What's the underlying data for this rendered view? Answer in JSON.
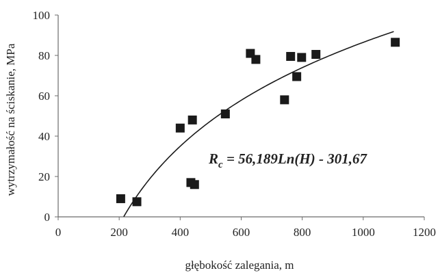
{
  "colors": {
    "background": "#ffffff",
    "axis": "#6b6b6b",
    "marker": "#1a1a1a",
    "curve": "#1a1a1a",
    "text": "#222222"
  },
  "chart_data": {
    "type": "scatter",
    "title": "",
    "xlabel": "głębokość zalegania, m",
    "ylabel": "wytrzymałość na ściskanie, MPa",
    "xlim": [
      0,
      1200
    ],
    "ylim": [
      0,
      100
    ],
    "x_ticks": [
      0,
      200,
      400,
      600,
      800,
      1000,
      1200
    ],
    "y_ticks": [
      0,
      20,
      40,
      60,
      80,
      100
    ],
    "x_tick_labels": [
      "0",
      "200",
      "400",
      "600",
      "800",
      "1000",
      "1200"
    ],
    "y_tick_labels": [
      "0",
      "20",
      "40",
      "60",
      "80",
      "100"
    ],
    "grid": false,
    "legend": false,
    "marker": "square",
    "points": [
      {
        "x": 205,
        "y": 9
      },
      {
        "x": 258,
        "y": 7.5
      },
      {
        "x": 400,
        "y": 44
      },
      {
        "x": 435,
        "y": 17
      },
      {
        "x": 440,
        "y": 48
      },
      {
        "x": 447,
        "y": 16
      },
      {
        "x": 548,
        "y": 51
      },
      {
        "x": 630,
        "y": 81
      },
      {
        "x": 648,
        "y": 78
      },
      {
        "x": 742,
        "y": 58
      },
      {
        "x": 762,
        "y": 79.5
      },
      {
        "x": 782,
        "y": 69.5
      },
      {
        "x": 798,
        "y": 79
      },
      {
        "x": 845,
        "y": 80.5
      },
      {
        "x": 1105,
        "y": 86.5
      }
    ],
    "trendline": {
      "type": "logarithmic",
      "a": 56.189,
      "b": -301.67,
      "x_range": [
        215,
        1100
      ],
      "label": {
        "prefix": "R",
        "subscript": "c",
        "rest": " = 56,189Ln(H) - 301,67"
      }
    }
  }
}
